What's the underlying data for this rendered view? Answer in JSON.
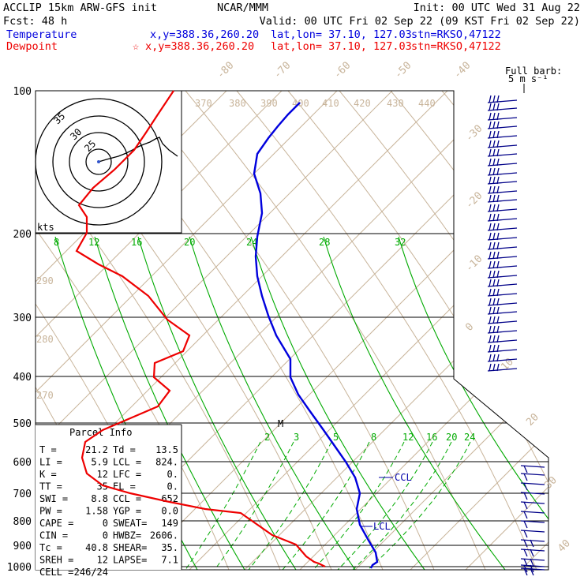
{
  "header": {
    "model": "ACCLIP 15km ARW-GFS init",
    "org": "NCAR/MMM",
    "init": "Init: 00 UTC Wed 31 Aug 22",
    "fcst": "Fcst:   48 h",
    "valid": "Valid: 00 UTC Fri 02 Sep 22 (09 KST Fri 02 Sep 22)",
    "temperature_label": "Temperature",
    "dewpoint_label": "Dewpoint",
    "temp_xy": "x,y=388.36,260.20",
    "dew_xy": "x,y=388.36,260.20",
    "latlon": "lat,lon= 37.10, 127.03",
    "stn": "stn=RKSO,47122",
    "dew_star": "☆"
  },
  "barb_key": {
    "line1": "Full barb:",
    "line2": "5 m s⁻¹"
  },
  "hodograph": {
    "units": "kts",
    "ring_labels": [
      "35",
      "30",
      "25"
    ]
  },
  "parcel_info": {
    "title": "Parcel Info",
    "rows": [
      [
        "T  =",
        "21.2",
        "Td =",
        "13.5"
      ],
      [
        "LI =",
        "5.9",
        "LCL =",
        "824."
      ],
      [
        "K  =",
        "12",
        "LFC =",
        "0."
      ],
      [
        "TT =",
        "35",
        "EL  =",
        "0."
      ],
      [
        "SWI =",
        "8.8",
        "CCL =",
        "652"
      ],
      [
        "PW =",
        "1.58",
        "YGP =",
        "0.0"
      ],
      [
        "CAPE =",
        "0",
        "SWEAT=",
        "149"
      ],
      [
        "CIN =",
        "0",
        "HWBZ=",
        "2606."
      ],
      [
        "Tc =",
        "40.8",
        "SHEAR=",
        "35."
      ],
      [
        "SREH =",
        "12",
        "LAPSE=",
        "7.1"
      ],
      [
        "CELL =",
        "246/24",
        "",
        ""
      ]
    ]
  },
  "level_labels": {
    "ccl": "CCL",
    "lcl": "LCL",
    "m": "M"
  },
  "colors": {
    "temperature": "#0000dd",
    "dewpoint": "#ee0000",
    "isotherm": "#c8b49a",
    "mixing_ratio": "#00aa00",
    "grid": "#000000",
    "barb": "#000088"
  },
  "chart_data": {
    "type": "line",
    "title": "",
    "ylabel": "",
    "xlabel": "",
    "pressure_ticks": [
      100,
      200,
      300,
      400,
      500,
      600,
      700,
      800,
      900,
      1000
    ],
    "isotherm_labels": [
      "-80",
      "-70",
      "-60",
      "-50",
      "-40",
      "-30",
      "-20",
      "-10",
      "0",
      "10",
      "20",
      "30",
      "40"
    ],
    "theta_labels": [
      "370",
      "380",
      "390",
      "400",
      "410",
      "420",
      "430",
      "440",
      "290",
      "280",
      "270"
    ],
    "mixing_ratio_labels_upper": [
      "8",
      "12",
      "16",
      "20",
      "24",
      "28",
      "32"
    ],
    "mixing_ratio_labels_lower": [
      "2",
      "3",
      "5",
      "8",
      "12",
      "16",
      "20",
      "24"
    ],
    "series": [
      {
        "name": "Temperature",
        "points": [
          [
            380,
            130
          ],
          [
            365,
            145
          ],
          [
            352,
            160
          ],
          [
            340,
            175
          ],
          [
            326,
            195
          ],
          [
            322,
            220
          ],
          [
            330,
            245
          ],
          [
            332,
            270
          ],
          [
            326,
            300
          ],
          [
            324,
            325
          ],
          [
            326,
            350
          ],
          [
            332,
            375
          ],
          [
            340,
            400
          ],
          [
            350,
            425
          ],
          [
            362,
            445
          ],
          [
            368,
            455
          ],
          [
            368,
            478
          ],
          [
            378,
            500
          ],
          [
            392,
            520
          ],
          [
            410,
            545
          ],
          [
            424,
            565
          ],
          [
            438,
            585
          ],
          [
            450,
            605
          ],
          [
            456,
            625
          ],
          [
            452,
            645
          ],
          [
            456,
            665
          ],
          [
            466,
            683
          ],
          [
            476,
            700
          ],
          [
            478,
            712
          ],
          [
            472,
            716
          ],
          [
            470,
            720
          ]
        ]
      },
      {
        "name": "Dewpoint",
        "points": [
          [
            220,
            115
          ],
          [
            200,
            145
          ],
          [
            185,
            168
          ],
          [
            170,
            190
          ],
          [
            145,
            215
          ],
          [
            118,
            238
          ],
          [
            100,
            260
          ],
          [
            110,
            275
          ],
          [
            110,
            295
          ],
          [
            97,
            318
          ],
          [
            125,
            335
          ],
          [
            155,
            350
          ],
          [
            188,
            375
          ],
          [
            212,
            405
          ],
          [
            240,
            425
          ],
          [
            232,
            445
          ],
          [
            196,
            460
          ],
          [
            195,
            478
          ],
          [
            215,
            495
          ],
          [
            200,
            515
          ],
          [
            165,
            530
          ],
          [
            130,
            545
          ],
          [
            108,
            560
          ],
          [
            104,
            580
          ],
          [
            110,
            600
          ],
          [
            130,
            615
          ],
          [
            165,
            625
          ],
          [
            210,
            635
          ],
          [
            260,
            645
          ],
          [
            305,
            650
          ],
          [
            345,
            678
          ],
          [
            375,
            690
          ],
          [
            388,
            705
          ],
          [
            398,
            712
          ],
          [
            404,
            714
          ],
          [
            412,
            718
          ]
        ]
      }
    ]
  }
}
